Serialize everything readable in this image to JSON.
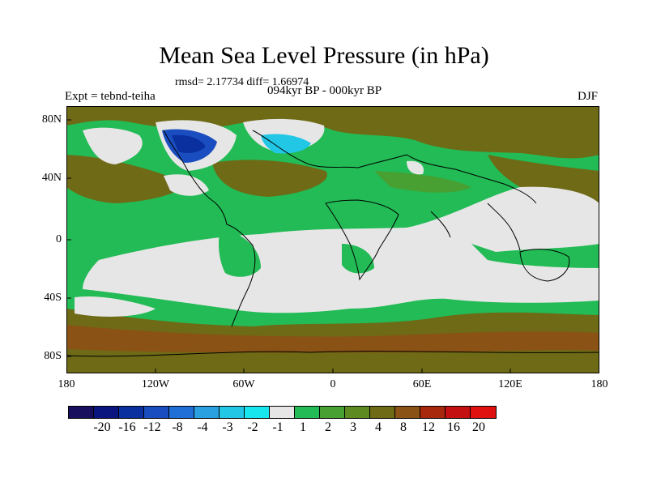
{
  "title": "Mean Sea Level Pressure (in hPa)",
  "stats": "rmsd= 2.17734 diff= 1.66974",
  "expt": "Expt = tebnd-teiha",
  "period": "094kyr BP - 000kyr BP",
  "season": "DJF",
  "lat_ticks": [
    "80N",
    "40N",
    "0",
    "40S",
    "80S"
  ],
  "lon_ticks": [
    "180",
    "120W",
    "60W",
    "0",
    "60E",
    "120E",
    "180"
  ],
  "colorbar": {
    "levels": [
      "-20",
      "-16",
      "-12",
      "-8",
      "-4",
      "-3",
      "-2",
      "-1",
      "1",
      "2",
      "3",
      "4",
      "8",
      "12",
      "16",
      "20"
    ],
    "colors": [
      "#180f5e",
      "#0a1580",
      "#0a30a0",
      "#1a4ec0",
      "#1f6fd6",
      "#2aa0e0",
      "#22c7e6",
      "#18e6ee",
      "#e6e6e6",
      "#22bb55",
      "#48a032",
      "#5e8a22",
      "#6e6a16",
      "#8a5214",
      "#a8280e",
      "#c41010",
      "#e01010"
    ]
  },
  "colors": {
    "white_band": "#e6e6e6",
    "green": "#22bb55",
    "olive": "#6e6a16",
    "brown": "#8a5214",
    "dark_green": "#48a032"
  }
}
